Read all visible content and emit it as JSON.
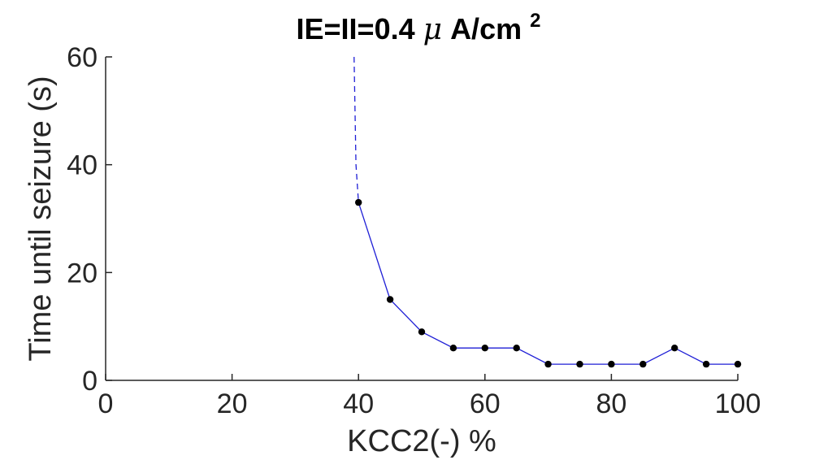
{
  "chart_data": {
    "type": "line",
    "title": {
      "prefix": "IE=II=0.4 ",
      "greek": "μ",
      "unit": "A/cm",
      "superscript": "2"
    },
    "xlabel": "KCC2(-) %",
    "ylabel": "Time until seizure (s)",
    "xlim": [
      0,
      100
    ],
    "ylim": [
      0,
      60
    ],
    "xticks": [
      0,
      20,
      40,
      60,
      80,
      100
    ],
    "yticks": [
      0,
      20,
      40,
      60
    ],
    "xtick_labels": [
      "0",
      "20",
      "40",
      "60",
      "80",
      "100"
    ],
    "ytick_labels": [
      "0",
      "20",
      "40",
      "60"
    ],
    "grid": false,
    "series": [
      {
        "style": "solid-with-markers",
        "line_color": "#1f1fd6",
        "marker_color": "#000000",
        "x": [
          40,
          45,
          50,
          55,
          60,
          65,
          70,
          75,
          80,
          85,
          90,
          95,
          100
        ],
        "y": [
          33,
          15,
          9,
          6,
          6,
          6,
          3,
          3,
          3,
          3,
          6,
          3,
          3
        ]
      },
      {
        "style": "dashed",
        "line_color": "#1f1fd6",
        "x": [
          39.3,
          39.6,
          40
        ],
        "y": [
          60,
          40,
          33
        ]
      }
    ],
    "axis_color": "#262626"
  }
}
